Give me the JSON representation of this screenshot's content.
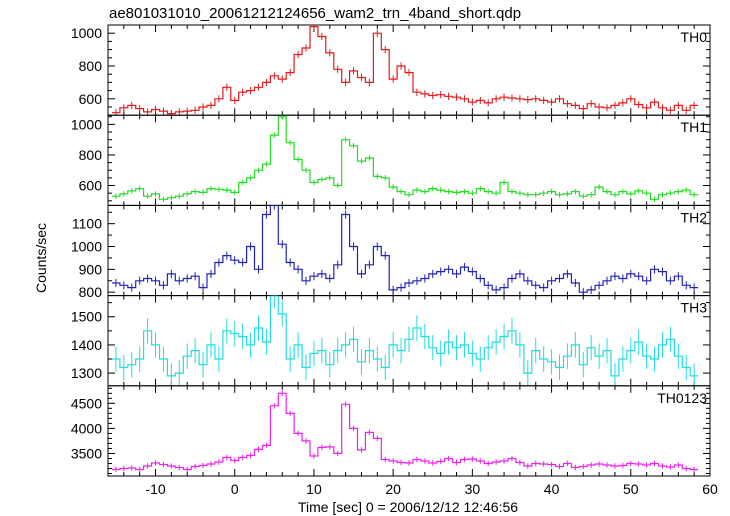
{
  "title": "ae801031010_20061212124656_wam2_trn_4band_short.qdp",
  "xlabel": "Time [sec] 0 = 2006/12/12 12:46:56",
  "ylabel": "Counts/sec",
  "chart_data": {
    "type": "line",
    "step": true,
    "shared_x": {
      "label": "Time [sec] 0 = 2006/12/12 12:46:56",
      "lim": [
        -16,
        60
      ],
      "ticks": [
        -10,
        0,
        10,
        20,
        30,
        40,
        50,
        60
      ],
      "minor_step": 2,
      "bin_width": 1
    },
    "x": [
      -15,
      -14,
      -13,
      -12,
      -11,
      -10,
      -9,
      -8,
      -7,
      -6,
      -5,
      -4,
      -3,
      -2,
      -1,
      0,
      1,
      2,
      3,
      4,
      5,
      6,
      7,
      8,
      9,
      10,
      11,
      12,
      13,
      14,
      15,
      16,
      17,
      18,
      19,
      20,
      21,
      22,
      23,
      24,
      25,
      26,
      27,
      28,
      29,
      30,
      31,
      32,
      33,
      34,
      35,
      36,
      37,
      38,
      39,
      40,
      41,
      42,
      43,
      44,
      45,
      46,
      47,
      48,
      49,
      50,
      51,
      52,
      53,
      54,
      55,
      56,
      57,
      58
    ],
    "panels": [
      {
        "name": "TH0",
        "color": "#e41a1c",
        "ylim": [
          500,
          1050
        ],
        "yticks": [
          600,
          800,
          1000
        ],
        "minor_step": 50,
        "err": 22,
        "values": [
          515,
          545,
          560,
          540,
          520,
          535,
          525,
          510,
          520,
          525,
          530,
          550,
          560,
          600,
          670,
          590,
          640,
          650,
          670,
          700,
          740,
          720,
          760,
          870,
          910,
          1040,
          980,
          880,
          780,
          700,
          770,
          730,
          700,
          1000,
          900,
          720,
          800,
          760,
          640,
          630,
          620,
          625,
          615,
          610,
          600,
          580,
          590,
          575,
          600,
          610,
          605,
          600,
          595,
          600,
          590,
          580,
          600,
          570,
          560,
          540,
          570,
          550,
          545,
          560,
          575,
          600,
          565,
          545,
          580,
          545,
          530,
          560,
          530,
          560
        ]
      },
      {
        "name": "TH1",
        "color": "#22dd22",
        "ylim": [
          470,
          1060
        ],
        "yticks": [
          600,
          800,
          1000
        ],
        "minor_step": 50,
        "err": 18,
        "values": [
          530,
          545,
          565,
          580,
          530,
          545,
          510,
          520,
          530,
          545,
          560,
          555,
          580,
          575,
          570,
          555,
          620,
          650,
          700,
          740,
          930,
          1050,
          880,
          770,
          700,
          620,
          640,
          650,
          600,
          900,
          860,
          760,
          780,
          660,
          650,
          590,
          560,
          540,
          570,
          560,
          580,
          570,
          560,
          555,
          560,
          550,
          580,
          560,
          550,
          620,
          560,
          550,
          540,
          540,
          550,
          560,
          540,
          545,
          560,
          530,
          540,
          590,
          560,
          540,
          560,
          545,
          565,
          550,
          510,
          540,
          550,
          560,
          570,
          540
        ]
      },
      {
        "name": "TH2",
        "color": "#2222bb",
        "ylim": [
          785,
          1180
        ],
        "yticks": [
          800,
          900,
          1000,
          1100
        ],
        "minor_step": 50,
        "err": 18,
        "values": [
          840,
          830,
          820,
          850,
          860,
          850,
          830,
          880,
          850,
          860,
          870,
          820,
          880,
          930,
          960,
          940,
          930,
          1000,
          900,
          1140,
          1180,
          1010,
          930,
          900,
          850,
          870,
          880,
          860,
          920,
          1140,
          1000,
          880,
          920,
          1000,
          960,
          810,
          820,
          840,
          850,
          860,
          880,
          890,
          900,
          880,
          910,
          890,
          860,
          830,
          810,
          820,
          860,
          880,
          850,
          830,
          820,
          850,
          860,
          880,
          840,
          800,
          810,
          830,
          850,
          870,
          860,
          880,
          870,
          850,
          900,
          890,
          850,
          870,
          830,
          820
        ]
      },
      {
        "name": "TH3",
        "color": "#22dddd",
        "ylim": [
          1255,
          1575
        ],
        "yticks": [
          1300,
          1400,
          1500
        ],
        "minor_step": 50,
        "err": 45,
        "values": [
          1350,
          1320,
          1330,
          1350,
          1450,
          1400,
          1350,
          1290,
          1300,
          1360,
          1380,
          1330,
          1400,
          1350,
          1450,
          1440,
          1430,
          1400,
          1460,
          1410,
          1575,
          1510,
          1350,
          1400,
          1320,
          1370,
          1380,
          1330,
          1380,
          1400,
          1420,
          1340,
          1380,
          1350,
          1320,
          1400,
          1380,
          1420,
          1460,
          1430,
          1390,
          1370,
          1410,
          1390,
          1400,
          1370,
          1350,
          1390,
          1410,
          1430,
          1450,
          1400,
          1300,
          1380,
          1350,
          1340,
          1320,
          1360,
          1400,
          1330,
          1390,
          1360,
          1380,
          1290,
          1350,
          1380,
          1410,
          1360,
          1350,
          1400,
          1420,
          1360,
          1320,
          1290
        ]
      },
      {
        "name": "TH0123",
        "color": "#ee22ee",
        "ylim": [
          3050,
          4850
        ],
        "yticks": [
          3500,
          4000,
          4500
        ],
        "minor_step": 100,
        "err": 55,
        "values": [
          3180,
          3200,
          3210,
          3180,
          3250,
          3310,
          3280,
          3250,
          3220,
          3180,
          3240,
          3260,
          3290,
          3330,
          3420,
          3360,
          3420,
          3460,
          3580,
          3660,
          4450,
          4700,
          4300,
          3900,
          3750,
          3450,
          3620,
          3630,
          3500,
          4480,
          4000,
          3570,
          3920,
          3800,
          3380,
          3350,
          3320,
          3310,
          3380,
          3350,
          3310,
          3340,
          3400,
          3320,
          3380,
          3390,
          3350,
          3300,
          3330,
          3350,
          3400,
          3320,
          3250,
          3300,
          3290,
          3280,
          3240,
          3300,
          3220,
          3240,
          3270,
          3290,
          3270,
          3250,
          3260,
          3300,
          3290,
          3270,
          3300,
          3250,
          3230,
          3270,
          3200,
          3180
        ]
      }
    ]
  }
}
